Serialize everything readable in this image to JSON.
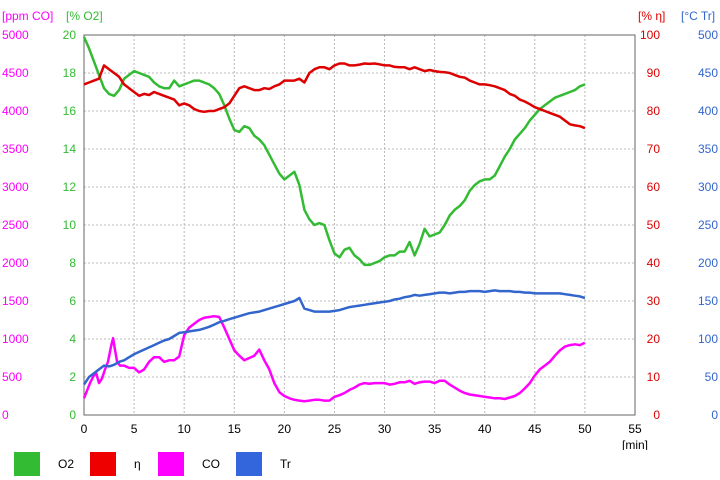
{
  "chart_data": {
    "type": "line",
    "x_unit_label": "[min]",
    "xlim": [
      0,
      55
    ],
    "x_ticks": [
      "0",
      "5",
      "10",
      "15",
      "20",
      "25",
      "30",
      "35",
      "40",
      "45",
      "50",
      "55"
    ],
    "axes": {
      "co": {
        "label": "[ppm CO]",
        "color": "#ff00ff",
        "ylim": [
          0,
          5000
        ],
        "ticks": [
          "0",
          "500",
          "1000",
          "1500",
          "2000",
          "2500",
          "3000",
          "3500",
          "4000",
          "4500",
          "5000"
        ]
      },
      "o2": {
        "label": "[% O2]",
        "color": "#33bb33",
        "ylim": [
          0,
          20
        ],
        "ticks": [
          "0",
          "2",
          "4",
          "6",
          "8",
          "10",
          "12",
          "14",
          "16",
          "18",
          "20"
        ]
      },
      "eta": {
        "label": "[% η]",
        "color": "#dd0000",
        "ylim": [
          0,
          100
        ],
        "ticks": [
          "0",
          "10",
          "20",
          "30",
          "40",
          "50",
          "60",
          "70",
          "80",
          "90",
          "100"
        ]
      },
      "tr": {
        "label": "[°C Tr]",
        "color": "#3366cc",
        "ylim": [
          0,
          500
        ],
        "ticks": [
          "0",
          "50",
          "100",
          "150",
          "200",
          "250",
          "300",
          "350",
          "400",
          "450",
          "500"
        ]
      }
    },
    "series": [
      {
        "name": "O2",
        "axis": "o2",
        "color": "#33bb33",
        "x": [
          0,
          0.5,
          1,
          1.5,
          2,
          2.5,
          3,
          3.5,
          4,
          4.5,
          5,
          5.5,
          6,
          6.5,
          7,
          7.5,
          8,
          8.5,
          9,
          9.5,
          10,
          10.5,
          11,
          11.5,
          12,
          12.5,
          13,
          13.5,
          14,
          14.5,
          15,
          15.5,
          16,
          16.5,
          17,
          17.5,
          18,
          18.5,
          19,
          19.5,
          20,
          20.5,
          21,
          21.5,
          22,
          22.5,
          23,
          23.5,
          24,
          24.5,
          25,
          25.5,
          26,
          26.5,
          27,
          27.5,
          28,
          28.5,
          29,
          29.5,
          30,
          30.5,
          31,
          31.5,
          32,
          32.5,
          33,
          33.5,
          34,
          34.5,
          35,
          35.5,
          36,
          36.5,
          37,
          37.5,
          38,
          38.5,
          39,
          39.5,
          40,
          40.5,
          41,
          41.5,
          42,
          42.5,
          43,
          43.5,
          44,
          44.5,
          45,
          45.5,
          46,
          46.5,
          47,
          47.5,
          48,
          48.5,
          49,
          49.5,
          50
        ],
        "values": [
          19.9,
          19.3,
          18.6,
          17.9,
          17.2,
          16.9,
          16.8,
          17.1,
          17.7,
          17.9,
          18.1,
          18.0,
          17.9,
          17.8,
          17.5,
          17.3,
          17.2,
          17.2,
          17.6,
          17.3,
          17.4,
          17.5,
          17.6,
          17.6,
          17.5,
          17.4,
          17.2,
          16.9,
          16.3,
          15.6,
          15.0,
          14.9,
          15.2,
          15.1,
          14.7,
          14.5,
          14.2,
          13.7,
          13.2,
          12.7,
          12.4,
          12.6,
          12.8,
          12.1,
          10.8,
          10.3,
          10.0,
          10.1,
          10.0,
          9.2,
          8.5,
          8.3,
          8.7,
          8.8,
          8.4,
          8.2,
          7.9,
          7.9,
          8.0,
          8.1,
          8.3,
          8.4,
          8.4,
          8.6,
          8.6,
          9.1,
          8.4,
          9.0,
          9.8,
          9.4,
          9.5,
          9.6,
          10.0,
          10.5,
          10.8,
          11.0,
          11.3,
          11.8,
          12.1,
          12.3,
          12.4,
          12.4,
          12.6,
          13.1,
          13.6,
          14.0,
          14.5,
          14.8,
          15.1,
          15.5,
          15.8,
          16.1,
          16.3,
          16.5,
          16.7,
          16.8,
          16.9,
          17.0,
          17.1,
          17.3,
          17.4
        ]
      },
      {
        "name": "η",
        "axis": "eta",
        "color": "#dd0000",
        "x": [
          0,
          0.5,
          1,
          1.5,
          2,
          2.5,
          3,
          3.5,
          4,
          4.5,
          5,
          5.5,
          6,
          6.5,
          7,
          7.5,
          8,
          8.5,
          9,
          9.5,
          10,
          10.5,
          11,
          11.5,
          12,
          12.5,
          13,
          13.5,
          14,
          14.5,
          15,
          15.5,
          16,
          16.5,
          17,
          17.5,
          18,
          18.5,
          19,
          19.5,
          20,
          20.5,
          21,
          21.5,
          22,
          22.5,
          23,
          23.5,
          24,
          24.5,
          25,
          25.5,
          26,
          26.5,
          27,
          27.5,
          28,
          28.5,
          29,
          29.5,
          30,
          30.5,
          31,
          31.5,
          32,
          32.5,
          33,
          33.5,
          34,
          34.5,
          35,
          35.5,
          36,
          36.5,
          37,
          37.5,
          38,
          38.5,
          39,
          39.5,
          40,
          40.5,
          41,
          41.5,
          42,
          42.5,
          43,
          43.5,
          44,
          44.5,
          45,
          45.5,
          46,
          46.5,
          47,
          47.5,
          48,
          48.5,
          49,
          49.5,
          50
        ],
        "values": [
          87,
          87.5,
          88,
          88.5,
          92,
          91,
          90,
          89,
          87,
          86,
          85,
          84,
          84.5,
          84.2,
          85,
          84.5,
          84,
          83.5,
          83,
          81.5,
          82,
          81.5,
          80.5,
          80,
          79.8,
          80,
          80,
          80.5,
          81,
          82,
          84,
          86,
          86.5,
          86,
          85.5,
          85.5,
          86,
          85.8,
          86.5,
          87,
          88,
          88,
          88,
          88.5,
          87.5,
          90,
          91,
          91.5,
          91.5,
          91,
          92,
          92.5,
          92.5,
          92,
          92,
          92.2,
          92.5,
          92.4,
          92.5,
          92.3,
          92,
          92,
          91.6,
          91.5,
          91.5,
          91,
          91.5,
          91,
          90.5,
          90.8,
          90.5,
          90.3,
          90.2,
          90,
          89.5,
          89,
          88.8,
          88,
          87.5,
          87,
          87,
          86.8,
          86.5,
          86,
          85.5,
          84.5,
          84,
          83,
          82.5,
          81.8,
          81,
          80.5,
          80,
          79.5,
          79,
          78.5,
          77.5,
          76.5,
          76.2,
          76,
          75.5
        ]
      },
      {
        "name": "CO",
        "axis": "co",
        "color": "#ff00ff",
        "x": [
          0,
          0.3,
          0.6,
          0.9,
          1.2,
          1.5,
          1.8,
          2.1,
          2.4,
          2.7,
          2.9,
          3.1,
          3.3,
          3.6,
          4,
          4.5,
          5,
          5.5,
          6,
          6.5,
          7,
          7.5,
          8,
          8.5,
          9,
          9.5,
          10,
          10.5,
          11,
          11.5,
          12,
          12.5,
          13,
          13.5,
          14,
          14.5,
          15,
          15.5,
          16,
          16.5,
          17,
          17.5,
          18,
          18.5,
          19,
          19.5,
          20,
          20.5,
          21,
          21.5,
          22,
          22.5,
          23,
          23.5,
          24,
          24.5,
          25,
          25.5,
          26,
          26.5,
          27,
          27.5,
          28,
          28.5,
          29,
          29.5,
          30,
          30.5,
          31,
          31.5,
          32,
          32.5,
          33,
          33.5,
          34,
          34.5,
          35,
          35.5,
          36,
          36.5,
          37,
          37.5,
          38,
          38.5,
          39,
          39.5,
          40,
          40.5,
          41,
          41.5,
          42,
          42.5,
          43,
          43.5,
          44,
          44.5,
          45,
          45.5,
          46,
          46.5,
          47,
          47.5,
          48,
          48.5,
          49,
          49.5,
          50
        ],
        "values": [
          220,
          320,
          420,
          500,
          560,
          420,
          480,
          600,
          700,
          900,
          1010,
          850,
          700,
          650,
          650,
          620,
          620,
          560,
          600,
          700,
          760,
          760,
          700,
          720,
          720,
          770,
          1050,
          1150,
          1200,
          1250,
          1280,
          1290,
          1300,
          1290,
          1150,
          1000,
          850,
          780,
          720,
          750,
          780,
          860,
          720,
          600,
          420,
          300,
          250,
          220,
          200,
          190,
          180,
          190,
          200,
          200,
          190,
          190,
          240,
          260,
          290,
          330,
          360,
          400,
          420,
          410,
          420,
          420,
          420,
          400,
          410,
          430,
          430,
          450,
          410,
          430,
          440,
          440,
          420,
          450,
          450,
          400,
          360,
          320,
          290,
          270,
          260,
          250,
          240,
          230,
          220,
          220,
          210,
          230,
          250,
          290,
          350,
          420,
          520,
          600,
          650,
          700,
          780,
          850,
          900,
          920,
          930,
          920,
          950
        ]
      },
      {
        "name": "Tr",
        "axis": "tr",
        "color": "#3366cc",
        "x": [
          0,
          0.5,
          1,
          1.5,
          2,
          2.5,
          3,
          3.5,
          4,
          4.5,
          5,
          5.5,
          6,
          6.5,
          7,
          7.5,
          8,
          8.5,
          9,
          9.5,
          10,
          10.5,
          11,
          11.5,
          12,
          12.5,
          13,
          13.5,
          14,
          14.5,
          15,
          15.5,
          16,
          16.5,
          17,
          17.5,
          18,
          18.5,
          19,
          19.5,
          20,
          20.5,
          21,
          21.5,
          22,
          22.5,
          23,
          23.5,
          24,
          24.5,
          25,
          25.5,
          26,
          26.5,
          27,
          27.5,
          28,
          28.5,
          29,
          29.5,
          30,
          30.5,
          31,
          31.5,
          32,
          32.5,
          33,
          33.5,
          34,
          34.5,
          35,
          35.5,
          36,
          36.5,
          37,
          37.5,
          38,
          38.5,
          39,
          39.5,
          40,
          40.5,
          41,
          41.5,
          42,
          42.5,
          43,
          43.5,
          44,
          44.5,
          45,
          45.5,
          46,
          46.5,
          47,
          47.5,
          48,
          48.5,
          49,
          49.5,
          50
        ],
        "values": [
          40,
          50,
          55,
          60,
          65,
          64,
          66,
          70,
          72,
          76,
          80,
          83,
          86,
          89,
          92,
          95,
          98,
          100,
          104,
          108,
          109,
          110,
          111,
          112,
          114,
          116,
          119,
          122,
          124,
          126,
          128,
          130,
          132,
          134,
          135,
          136,
          138,
          140,
          142,
          144,
          146,
          148,
          150,
          154,
          140,
          138,
          136,
          136,
          136,
          136,
          137,
          138,
          140,
          142,
          143,
          144,
          145,
          146,
          147,
          148,
          149,
          150,
          152,
          153,
          155,
          156,
          158,
          157,
          158,
          159,
          160,
          161,
          161,
          160,
          161,
          162,
          162,
          163,
          163,
          163,
          162,
          163,
          164,
          163,
          163,
          163,
          162,
          162,
          161,
          161,
          160,
          160,
          160,
          160,
          160,
          160,
          159,
          158,
          157,
          156,
          154
        ]
      }
    ]
  },
  "legend": [
    {
      "label": "O2",
      "color": "#33bb33"
    },
    {
      "label": "η",
      "color": "#ee0000"
    },
    {
      "label": "CO",
      "color": "#ff00ff"
    },
    {
      "label": "Tr",
      "color": "#3366dd"
    }
  ]
}
